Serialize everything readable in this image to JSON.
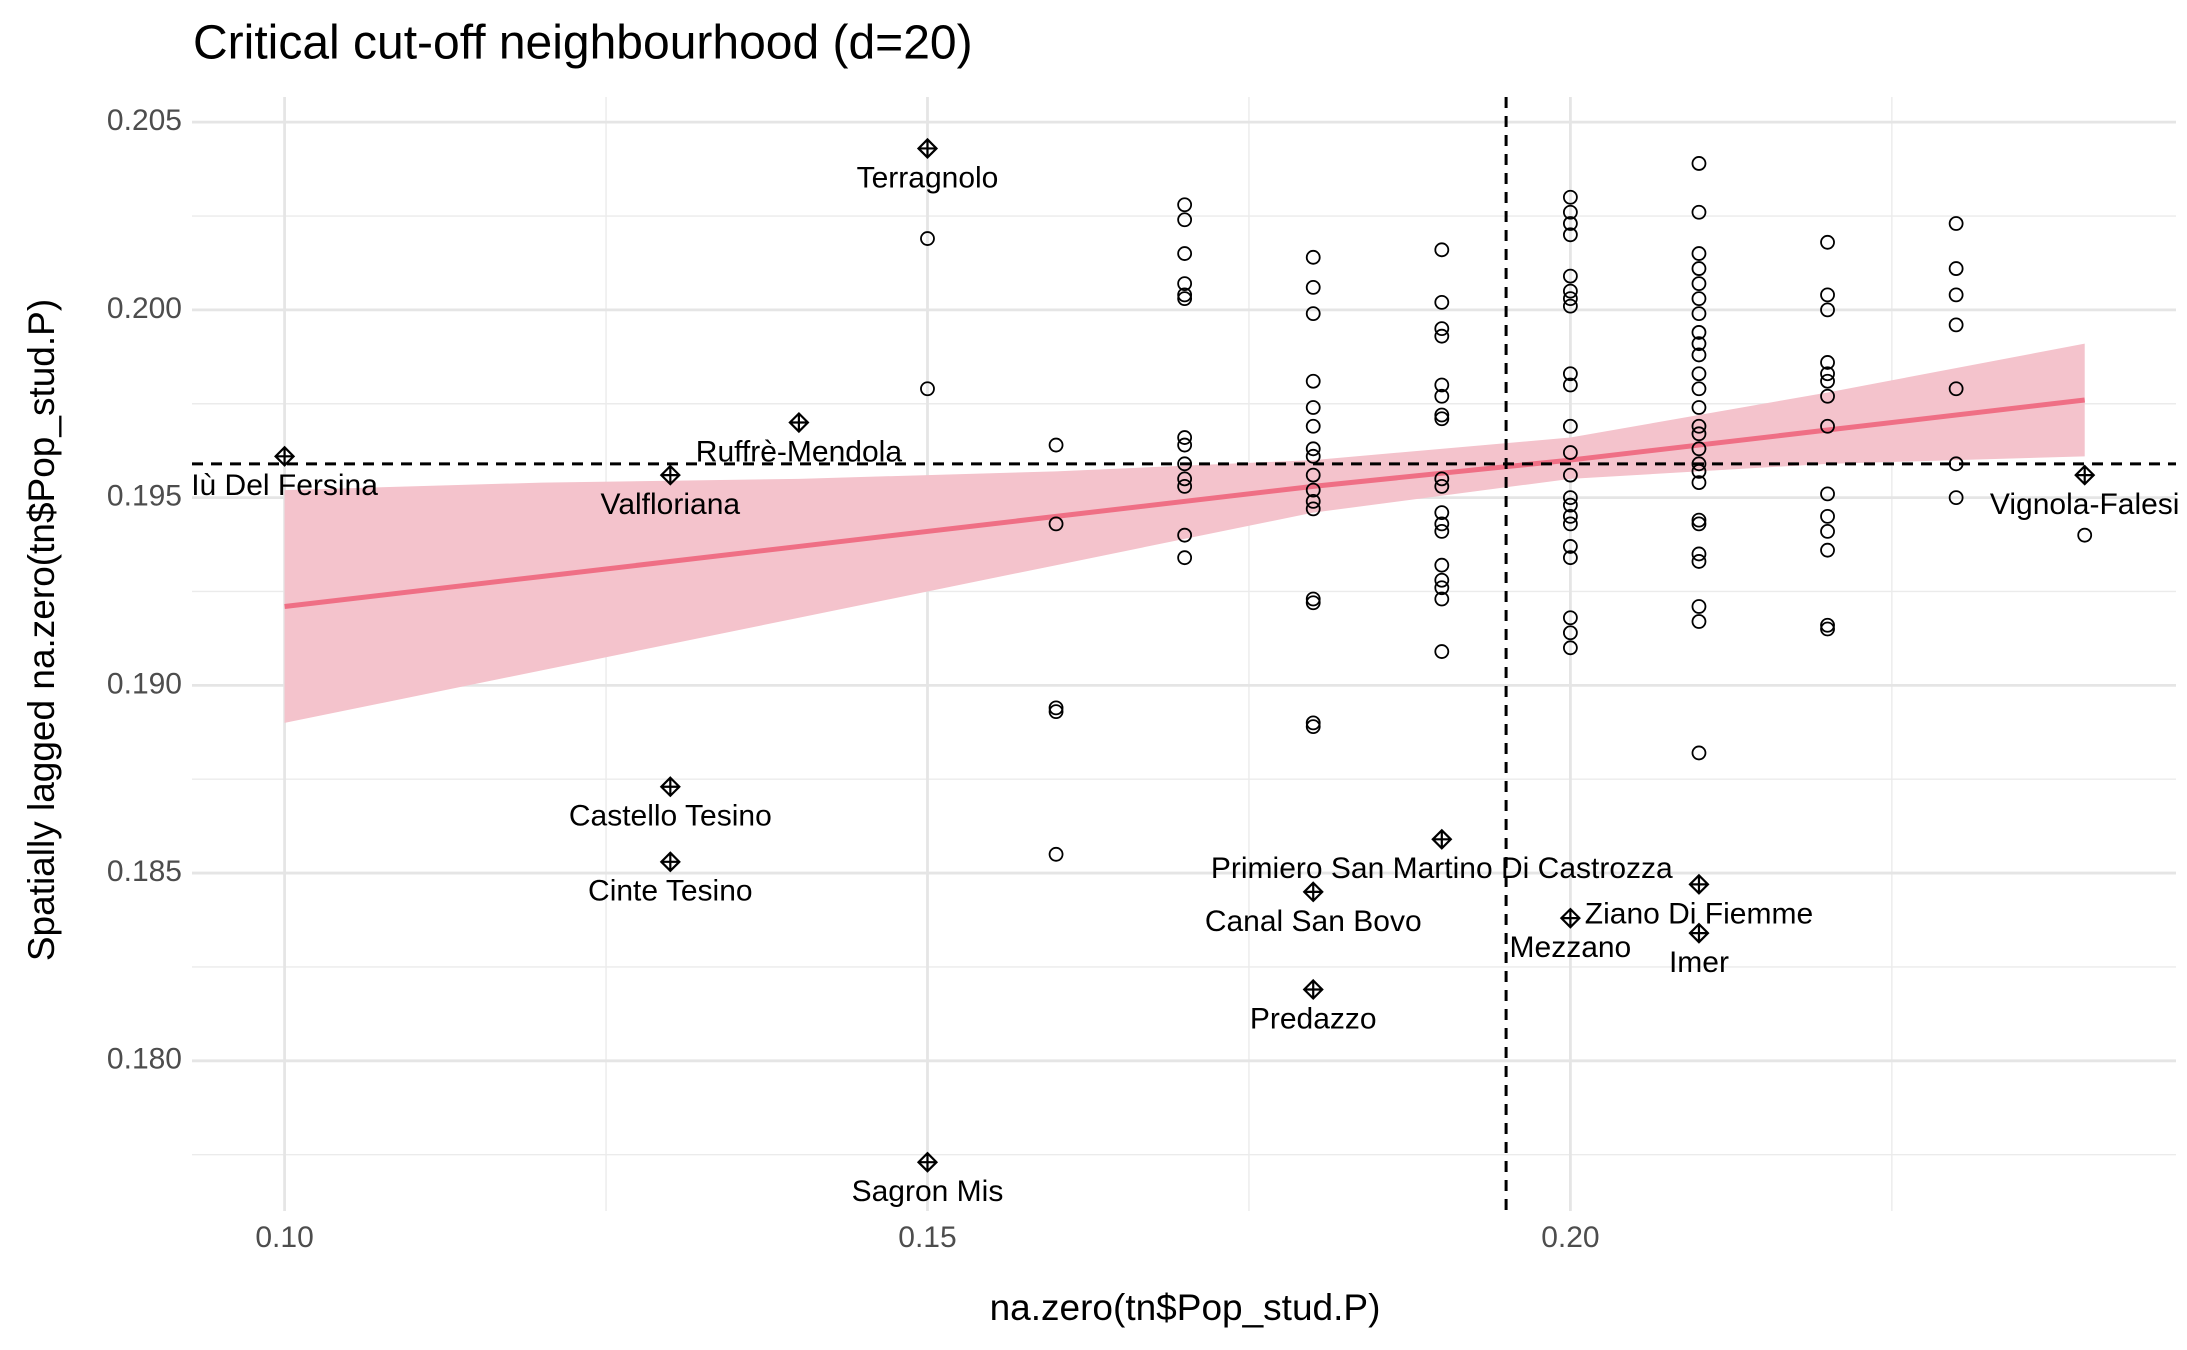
{
  "chart_data": {
    "type": "scatter",
    "title": "Critical cut-off neighbourhood (d=20)",
    "x_label": "na.zero(tn$Pop_stud.P)",
    "y_label": "Spatially lagged na.zero(tn$Pop_stud.P)",
    "xlim": [
      0.0928,
      0.2471
    ],
    "ylim": [
      0.176,
      0.20567
    ],
    "xticks": [
      {
        "value": 0.1,
        "label": "0.10"
      },
      {
        "value": 0.15,
        "label": "0.15"
      },
      {
        "value": 0.2,
        "label": "0.20"
      }
    ],
    "yticks": [
      {
        "value": 0.18,
        "label": "0.180"
      },
      {
        "value": 0.185,
        "label": "0.185"
      },
      {
        "value": 0.19,
        "label": "0.190"
      },
      {
        "value": 0.195,
        "label": "0.195"
      },
      {
        "value": 0.2,
        "label": "0.200"
      },
      {
        "value": 0.205,
        "label": "0.205"
      }
    ],
    "grid": true,
    "hline": 0.1959,
    "vline": 0.195,
    "series": [
      {
        "marker": "circle",
        "color": "#000000",
        "x": [
          0.15,
          0.15,
          0.16,
          0.16,
          0.16,
          0.16,
          0.16,
          0.17,
          0.17,
          0.17,
          0.17,
          0.17,
          0.17,
          0.17,
          0.17,
          0.17,
          0.17,
          0.17,
          0.17,
          0.17,
          0.18,
          0.18,
          0.18,
          0.18,
          0.18,
          0.18,
          0.18,
          0.18,
          0.18,
          0.18,
          0.18,
          0.18,
          0.18,
          0.18,
          0.18,
          0.18,
          0.19,
          0.19,
          0.19,
          0.19,
          0.19,
          0.19,
          0.19,
          0.19,
          0.19,
          0.19,
          0.19,
          0.19,
          0.19,
          0.19,
          0.19,
          0.19,
          0.19,
          0.19,
          0.2,
          0.2,
          0.2,
          0.2,
          0.2,
          0.2,
          0.2,
          0.2,
          0.2,
          0.2,
          0.2,
          0.2,
          0.2,
          0.2,
          0.2,
          0.2,
          0.2,
          0.2,
          0.2,
          0.2,
          0.2,
          0.2,
          0.21,
          0.21,
          0.21,
          0.21,
          0.21,
          0.21,
          0.21,
          0.21,
          0.21,
          0.21,
          0.21,
          0.21,
          0.21,
          0.21,
          0.21,
          0.21,
          0.21,
          0.21,
          0.21,
          0.21,
          0.21,
          0.21,
          0.21,
          0.21,
          0.21,
          0.21,
          0.22,
          0.22,
          0.22,
          0.22,
          0.22,
          0.22,
          0.22,
          0.22,
          0.22,
          0.22,
          0.22,
          0.22,
          0.22,
          0.22,
          0.23,
          0.23,
          0.23,
          0.23,
          0.23,
          0.23,
          0.23,
          0.24
        ],
        "values": [
          0.2019,
          0.1979,
          0.1964,
          0.1943,
          0.1894,
          0.1893,
          0.1855,
          0.2028,
          0.2024,
          0.2015,
          0.2007,
          0.2004,
          0.2003,
          0.1966,
          0.1964,
          0.1959,
          0.1955,
          0.1953,
          0.194,
          0.1934,
          0.2014,
          0.2006,
          0.1999,
          0.1981,
          0.1974,
          0.1969,
          0.1963,
          0.1961,
          0.1956,
          0.1952,
          0.1949,
          0.1947,
          0.1923,
          0.1922,
          0.189,
          0.1889,
          0.2016,
          0.2002,
          0.1995,
          0.1993,
          0.198,
          0.1977,
          0.1972,
          0.1971,
          0.1955,
          0.1953,
          0.1946,
          0.1943,
          0.1941,
          0.1932,
          0.1928,
          0.1926,
          0.1923,
          0.1909,
          0.203,
          0.2026,
          0.2023,
          0.202,
          0.2009,
          0.2005,
          0.2003,
          0.2001,
          0.1983,
          0.198,
          0.1969,
          0.1962,
          0.1956,
          0.195,
          0.1948,
          0.1945,
          0.1943,
          0.1937,
          0.1934,
          0.1918,
          0.1914,
          0.191,
          0.2039,
          0.2026,
          0.2015,
          0.2011,
          0.2007,
          0.2003,
          0.1999,
          0.1994,
          0.1991,
          0.1988,
          0.1983,
          0.1979,
          0.1974,
          0.1969,
          0.1967,
          0.1963,
          0.1959,
          0.1957,
          0.1954,
          0.1944,
          0.1943,
          0.1935,
          0.1933,
          0.1921,
          0.1917,
          0.1882,
          0.2018,
          0.2004,
          0.2,
          0.1986,
          0.1983,
          0.1981,
          0.1977,
          0.1969,
          0.1951,
          0.1945,
          0.1941,
          0.1936,
          0.1916,
          0.1915,
          0.2023,
          0.2011,
          0.2004,
          0.1996,
          0.1979,
          0.1959,
          0.195,
          0.194
        ]
      },
      {
        "marker": "diamond-plus",
        "color": "#000000",
        "x": [
          0.15,
          0.15,
          0.1,
          0.14,
          0.13,
          0.13,
          0.13,
          0.19,
          0.18,
          0.18,
          0.2,
          0.21,
          0.21,
          0.24
        ],
        "values": [
          0.2043,
          0.1773,
          0.1961,
          0.197,
          0.1956,
          0.1873,
          0.1853,
          0.1859,
          0.1845,
          0.1819,
          0.1838,
          0.1847,
          0.1834,
          0.1956
        ],
        "labels": [
          "Terragnolo",
          "Sagron Mis",
          "Iù Del Fersina",
          "Ruffrè-Mendola",
          "Valfloriana",
          "Castello Tesino",
          "Cinte Tesino",
          "Primiero San Martino Di Castrozza",
          "Canal San Bovo",
          "Predazzo",
          "Mezzano",
          "Ziano Di Fiemme",
          "Imer",
          "Vignola-Falesi"
        ]
      }
    ],
    "fit": {
      "color": "#ef6f85",
      "fill": "#f4c3cc",
      "x": [
        0.1,
        0.12,
        0.14,
        0.16,
        0.18,
        0.2,
        0.22,
        0.24
      ],
      "y": [
        0.1921,
        0.1929,
        0.1937,
        0.1945,
        0.1953,
        0.196,
        0.1968,
        0.1976
      ],
      "lower": [
        0.189,
        0.1904,
        0.1918,
        0.1932,
        0.1946,
        0.1955,
        0.1959,
        0.1961
      ],
      "upper": [
        0.1952,
        0.1954,
        0.1955,
        0.1957,
        0.196,
        0.1966,
        0.1978,
        0.1991
      ]
    }
  }
}
